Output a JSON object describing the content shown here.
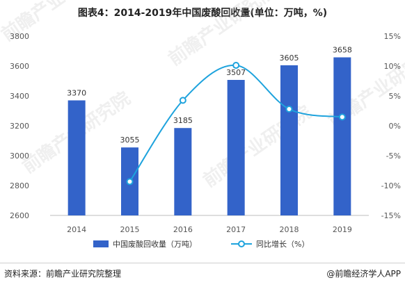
{
  "title": "图表4：2014-2019年中国废酸回收量(单位：万吨，%)",
  "footer": {
    "source": "资料来源：前瞻产业研究院整理",
    "credit": "@前瞻经济学人APP"
  },
  "watermark": "前瞻产业研究院",
  "colors": {
    "bar": "#3363c9",
    "line": "#1ea3dd",
    "marker_fill": "#ffffff",
    "grid": "#e6e6e6"
  },
  "chart_data": {
    "type": "bar",
    "categories": [
      "2014",
      "2015",
      "2016",
      "2017",
      "2018",
      "2019"
    ],
    "series": [
      {
        "name": "中国废酸回收量（万吨）",
        "type": "bar",
        "axis": "left",
        "values": [
          3370,
          3055,
          3185,
          3507,
          3605,
          3658
        ],
        "labels": [
          "3370",
          "3055",
          "3185",
          "3507",
          "3605",
          "3658"
        ]
      },
      {
        "name": "同比增长（%）",
        "type": "line",
        "axis": "right",
        "values": [
          null,
          -9.35,
          4.26,
          10.11,
          2.79,
          1.47
        ]
      }
    ],
    "ylim_left": [
      2600,
      3800
    ],
    "yticks_left": [
      "2600",
      "2800",
      "3000",
      "3200",
      "3400",
      "3600",
      "3800"
    ],
    "ylim_right": [
      -15,
      15
    ],
    "yticks_right": [
      "-15%",
      "-10%",
      "-5%",
      "0%",
      "5%",
      "10%",
      "15%"
    ],
    "grid": false,
    "legend": "bottom"
  }
}
